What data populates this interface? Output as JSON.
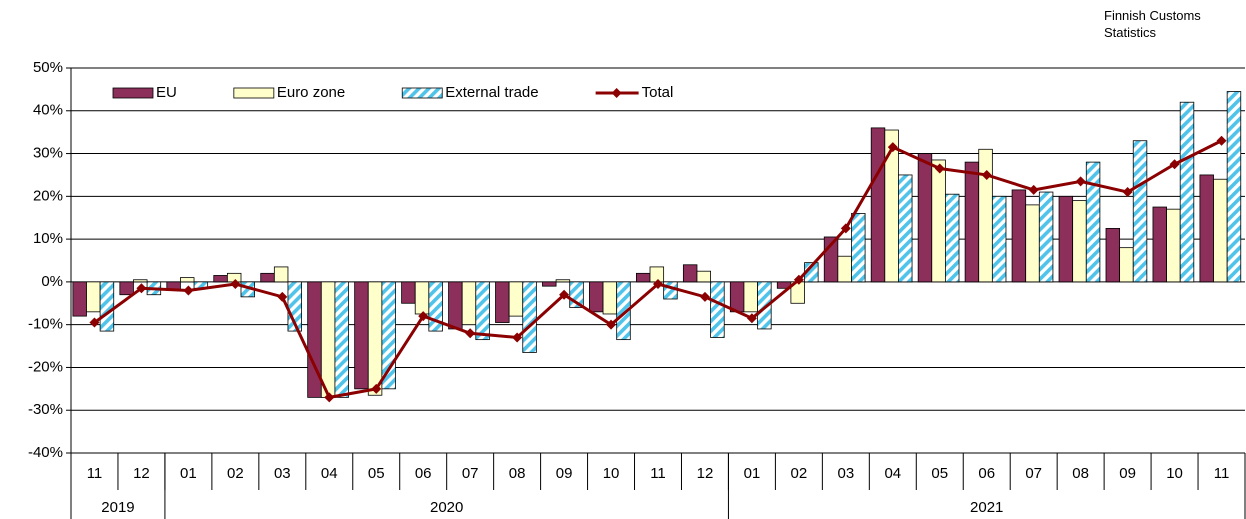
{
  "chart_data": {
    "type": "bar_line",
    "source": "Finnish Customs Statistics",
    "groups": [
      {
        "label": "2019",
        "categories": [
          "11",
          "12"
        ]
      },
      {
        "label": "2020",
        "categories": [
          "01",
          "02",
          "03",
          "04",
          "05",
          "06",
          "07",
          "08",
          "09",
          "10",
          "11",
          "12"
        ]
      },
      {
        "label": "2021",
        "categories": [
          "01",
          "02",
          "03",
          "04",
          "05",
          "06",
          "07",
          "08",
          "09",
          "10",
          "11"
        ]
      }
    ],
    "series": [
      {
        "name": "EU",
        "kind": "bar",
        "color": "#8c2f5a",
        "values": [
          -8,
          -3,
          -2,
          1.5,
          2,
          -27,
          -25,
          -5,
          -11,
          -9.5,
          -1,
          -7,
          2,
          4,
          -7,
          -1.5,
          10.5,
          36,
          30,
          28,
          21.5,
          20,
          12.5,
          17.5,
          25
        ]
      },
      {
        "name": "Euro zone",
        "kind": "bar",
        "color": "#ffffcc",
        "values": [
          -7,
          0.5,
          1,
          2,
          3.5,
          -27,
          -26.5,
          -7.5,
          -10,
          -8,
          0.5,
          -7.5,
          3.5,
          2.5,
          -7,
          -5,
          6,
          35.5,
          28.5,
          31,
          18,
          19,
          8,
          17,
          24
        ]
      },
      {
        "name": "External trade",
        "kind": "bar",
        "color": "#4fc3ea",
        "hatch": true,
        "values": [
          -11.5,
          -3,
          -1.5,
          -3.5,
          -11.5,
          -27,
          -25,
          -11.5,
          -13.5,
          -16.5,
          -6,
          -13.5,
          -4,
          -13,
          -11,
          4.5,
          16,
          25,
          20.5,
          20,
          21,
          28,
          33,
          42,
          44.5
        ]
      },
      {
        "name": "Total",
        "kind": "line",
        "color": "#8b0000",
        "values": [
          -9.5,
          -1.5,
          -2,
          -0.5,
          -3.5,
          -27,
          -25,
          -8,
          -12,
          -13,
          -3,
          -10,
          -0.5,
          -3.5,
          -8.5,
          0.5,
          12.5,
          31.5,
          26.5,
          25,
          21.5,
          23.5,
          21,
          27.5,
          33
        ]
      }
    ],
    "ylim": [
      -40,
      50
    ],
    "yticks": [
      {
        "value": -40,
        "label": "-40%"
      },
      {
        "value": -30,
        "label": "-30%"
      },
      {
        "value": -20,
        "label": "-20%"
      },
      {
        "value": -10,
        "label": "-10%"
      },
      {
        "value": 0,
        "label": "0%"
      },
      {
        "value": 10,
        "label": "10%"
      },
      {
        "value": 20,
        "label": "20%"
      },
      {
        "value": 30,
        "label": "30%"
      },
      {
        "value": 40,
        "label": "40%"
      },
      {
        "value": 50,
        "label": "50%"
      }
    ],
    "grid": true,
    "legend": "top-left"
  }
}
